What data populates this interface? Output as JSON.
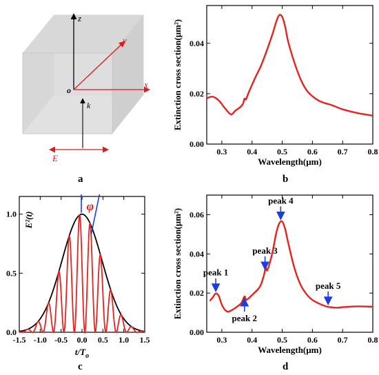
{
  "panels": {
    "a": {
      "label": "a",
      "axes": {
        "z": "z",
        "y": "y",
        "x": "x",
        "origin": "o",
        "k": "k",
        "E": "E"
      },
      "colors": {
        "x_axis": "#e0191a",
        "y_axis": "#e0191a",
        "z_axis": "#000000",
        "k_arrow": "#000000",
        "E_arrow": "#e0191a"
      }
    },
    "b": {
      "label": "b"
    },
    "c": {
      "label": "c"
    },
    "d": {
      "label": "d"
    }
  },
  "chart_data": [
    {
      "id": "b",
      "type": "line",
      "xlabel": "Wavelength(μm)",
      "ylabel": "Extinction cross section(μm²)",
      "xlim": [
        0.25,
        0.8
      ],
      "ylim": [
        0,
        0.055
      ],
      "xticks": [
        "0.3",
        "0.4",
        "0.5",
        "0.6",
        "0.7",
        "0.8"
      ],
      "yticks": [
        "0.00",
        "0.02",
        "0.04"
      ],
      "series": [
        {
          "color": "#e8211d",
          "x": [
            0.25,
            0.27,
            0.29,
            0.31,
            0.33,
            0.345,
            0.36,
            0.37,
            0.375,
            0.38,
            0.39,
            0.41,
            0.43,
            0.45,
            0.47,
            0.48,
            0.49,
            0.5,
            0.51,
            0.52,
            0.54,
            0.56,
            0.58,
            0.6,
            0.62,
            0.64,
            0.655,
            0.67,
            0.7,
            0.75,
            0.8
          ],
          "y": [
            0.0182,
            0.0188,
            0.0173,
            0.0143,
            0.0118,
            0.0133,
            0.0146,
            0.016,
            0.018,
            0.0178,
            0.0208,
            0.0262,
            0.0312,
            0.0375,
            0.0445,
            0.0485,
            0.0512,
            0.0505,
            0.0465,
            0.0405,
            0.0325,
            0.026,
            0.0215,
            0.019,
            0.0173,
            0.0163,
            0.0158,
            0.0152,
            0.0138,
            0.0123,
            0.0113
          ]
        }
      ]
    },
    {
      "id": "c",
      "type": "line",
      "xlabel": "t/To",
      "ylabel": "E²(t)",
      "xlim": [
        -1.5,
        1.5
      ],
      "ylim": [
        0,
        1.15
      ],
      "xticks": [
        "-1.5",
        "-1.0",
        "-0.5",
        "0.0",
        "0.5",
        "1.0",
        "1.5"
      ],
      "yticks": [
        "0.0",
        "0.5",
        "1.0"
      ],
      "annotation": "φ",
      "series": [
        {
          "color": "#000000",
          "function": "envelope",
          "sigma": 0.48,
          "x_range": [
            -1.5,
            1.5
          ]
        },
        {
          "color": "#e8211d",
          "function": "envelope_cos2",
          "sigma": 0.48,
          "period": 0.5,
          "phase": 0.72,
          "x_range": [
            -1.5,
            1.5
          ]
        }
      ],
      "markers": [
        {
          "color": "#1a3fe0",
          "x": 0.0
        },
        {
          "color": "#1a3fe0",
          "x": 0.22
        }
      ]
    },
    {
      "id": "d",
      "type": "line",
      "xlabel": "Wavelength(μm)",
      "ylabel": "Extinction cross section(μm²)",
      "xlim": [
        0.25,
        0.8
      ],
      "ylim": [
        0,
        0.07
      ],
      "xticks": [
        "0.3",
        "0.4",
        "0.5",
        "0.6",
        "0.7",
        "0.8"
      ],
      "yticks": [
        "0.00",
        "0.02",
        "0.04",
        "0.06"
      ],
      "series": [
        {
          "color": "#e8211d",
          "x": [
            0.26,
            0.27,
            0.28,
            0.29,
            0.3,
            0.31,
            0.32,
            0.33,
            0.35,
            0.365,
            0.375,
            0.38,
            0.39,
            0.4,
            0.42,
            0.43,
            0.44,
            0.445,
            0.45,
            0.46,
            0.47,
            0.48,
            0.49,
            0.5,
            0.51,
            0.52,
            0.54,
            0.56,
            0.58,
            0.6,
            0.62,
            0.64,
            0.65,
            0.66,
            0.68,
            0.7,
            0.75,
            0.8
          ],
          "y": [
            0.016,
            0.0178,
            0.0198,
            0.0185,
            0.014,
            0.0115,
            0.0105,
            0.011,
            0.013,
            0.015,
            0.0183,
            0.0165,
            0.0175,
            0.019,
            0.022,
            0.0245,
            0.0295,
            0.033,
            0.0315,
            0.036,
            0.0425,
            0.0505,
            0.0555,
            0.0565,
            0.0525,
            0.0455,
            0.033,
            0.0245,
            0.0195,
            0.0165,
            0.0148,
            0.0135,
            0.013,
            0.0128,
            0.0125,
            0.0128,
            0.0132,
            0.013
          ]
        }
      ],
      "annotations": [
        {
          "label": "peak 1",
          "x": 0.28,
          "y": 0.0198,
          "dir": "down"
        },
        {
          "label": "peak 2",
          "x": 0.375,
          "y": 0.0183,
          "dir": "up"
        },
        {
          "label": "peak 3",
          "x": 0.443,
          "y": 0.031,
          "dir": "down"
        },
        {
          "label": "peak 4",
          "x": 0.495,
          "y": 0.0565,
          "dir": "down"
        },
        {
          "label": "peak 5",
          "x": 0.652,
          "y": 0.0131,
          "dir": "down"
        }
      ]
    }
  ]
}
